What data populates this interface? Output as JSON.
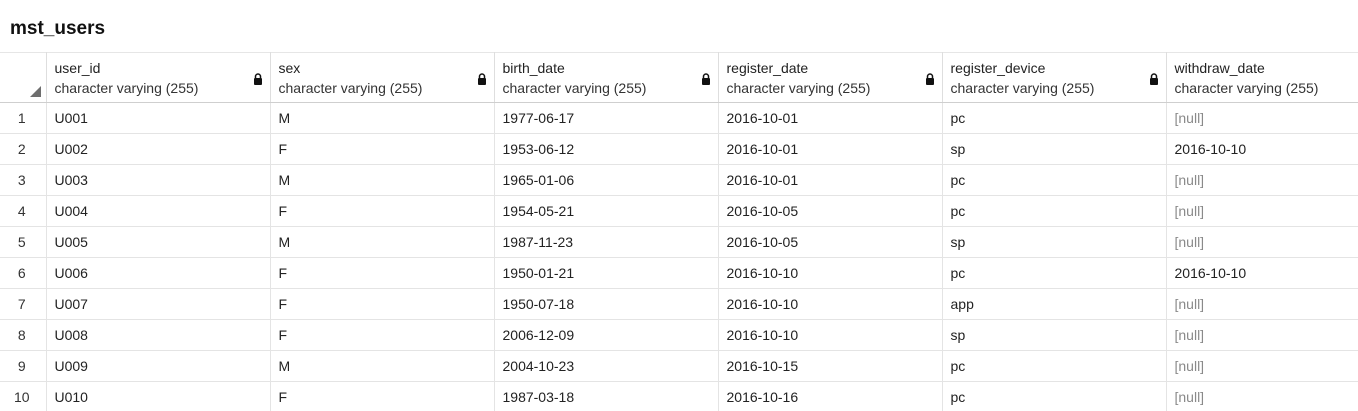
{
  "title": "mst_users",
  "columns": [
    {
      "name": "user_id",
      "type": "character varying (255)"
    },
    {
      "name": "sex",
      "type": "character varying (255)"
    },
    {
      "name": "birth_date",
      "type": "character varying (255)"
    },
    {
      "name": "register_date",
      "type": "character varying (255)"
    },
    {
      "name": "register_device",
      "type": "character varying (255)"
    },
    {
      "name": "withdraw_date",
      "type": "character varying (255)"
    }
  ],
  "rows": [
    {
      "n": "1",
      "cells": [
        "U001",
        "M",
        "1977-06-17",
        "2016-10-01",
        "pc",
        "[null]"
      ]
    },
    {
      "n": "2",
      "cells": [
        "U002",
        "F",
        "1953-06-12",
        "2016-10-01",
        "sp",
        "2016-10-10"
      ]
    },
    {
      "n": "3",
      "cells": [
        "U003",
        "M",
        "1965-01-06",
        "2016-10-01",
        "pc",
        "[null]"
      ]
    },
    {
      "n": "4",
      "cells": [
        "U004",
        "F",
        "1954-05-21",
        "2016-10-05",
        "pc",
        "[null]"
      ]
    },
    {
      "n": "5",
      "cells": [
        "U005",
        "M",
        "1987-11-23",
        "2016-10-05",
        "sp",
        "[null]"
      ]
    },
    {
      "n": "6",
      "cells": [
        "U006",
        "F",
        "1950-01-21",
        "2016-10-10",
        "pc",
        "2016-10-10"
      ]
    },
    {
      "n": "7",
      "cells": [
        "U007",
        "F",
        "1950-07-18",
        "2016-10-10",
        "app",
        "[null]"
      ]
    },
    {
      "n": "8",
      "cells": [
        "U008",
        "F",
        "2006-12-09",
        "2016-10-10",
        "sp",
        "[null]"
      ]
    },
    {
      "n": "9",
      "cells": [
        "U009",
        "M",
        "2004-10-23",
        "2016-10-15",
        "pc",
        "[null]"
      ]
    },
    {
      "n": "10",
      "cells": [
        "U010",
        "F",
        "1987-03-18",
        "2016-10-16",
        "pc",
        "[null]"
      ]
    }
  ],
  "icons": {
    "lock": "lock-icon",
    "corner": "select-all-triangle-icon"
  },
  "colors": {
    "null_text": "#8a8a8a",
    "grid_line": "#e4e4e4"
  }
}
